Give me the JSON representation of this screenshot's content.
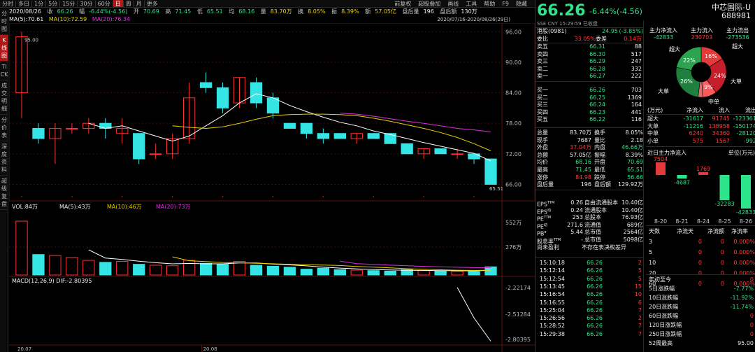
{
  "toolbar": {
    "items": [
      "分时",
      "多日",
      "1分",
      "5分",
      "15分",
      "30分",
      "60分",
      "日",
      "周",
      "月",
      "更多"
    ],
    "active": "日",
    "right": [
      "前复权",
      "超级叠加",
      "画线",
      "工具",
      "帮助",
      "F9",
      "隐藏"
    ]
  },
  "vtabs": [
    {
      "label": "分时图",
      "active": false
    },
    {
      "label": "K线图",
      "active": true
    },
    {
      "label": "TICK",
      "active": false
    },
    {
      "label": "成交明细",
      "active": false
    },
    {
      "label": "分价表",
      "active": false
    },
    {
      "label": "深度资料",
      "active": false
    },
    {
      "label": "超级复盘",
      "active": false
    }
  ],
  "info": {
    "date": "2020/08/26",
    "close_lbl": "收",
    "close": "66.26",
    "chg_lbl": "幅",
    "chg": "-6.44%(-4.56)",
    "open_lbl": "开",
    "open": "70.69",
    "high_lbl": "高",
    "high": "71.45",
    "low_lbl": "低",
    "low": "65.51",
    "avg_lbl": "均",
    "avg": "68.16",
    "vol_lbl": "量",
    "vol": "83.70万",
    "turn_lbl": "换",
    "turn": "8.05%",
    "amp_lbl": "振",
    "amp": "8.39%",
    "amt_lbl": "额",
    "amt": "57.05亿",
    "after_lbl": "盘后量",
    "after": "196",
    "afteramt_lbl": "盘后额",
    "afteramt": "130万"
  },
  "ma": {
    "ma5": "MA(5):70.61",
    "ma10": "MA(10):72.59",
    "ma20": "MA(20):76.34"
  },
  "daterange": "2020/07/16-2020/08/26(29日)",
  "price_axis": {
    "labels": [
      "96.00",
      "90.00",
      "84.00",
      "78.00",
      "72.00",
      "66.00"
    ],
    "high_mark": "95.00",
    "low_mark": "65.51"
  },
  "vol_line": {
    "vol": "VOL:84万",
    "ma5": "MA(5):43万",
    "ma10": "MA(10):46万",
    "ma20": "MA(20):73万"
  },
  "vol_axis": [
    "552万",
    "276万"
  ],
  "macd_line": "MACD(12,26,9)  DIF:-2.80395",
  "macd_axis": [
    "-2.22174",
    "-2.51284",
    "-2.80395"
  ],
  "x_labels": [
    "20.07",
    "20.08"
  ],
  "candles": [
    {
      "o": 84,
      "h": 96,
      "l": 79,
      "c": 95
    },
    {
      "o": 77,
      "h": 78,
      "l": 74,
      "c": 75
    },
    {
      "o": 75,
      "h": 78,
      "l": 70,
      "c": 77
    },
    {
      "o": 77,
      "h": 78,
      "l": 76,
      "c": 77
    },
    {
      "o": 77,
      "h": 79,
      "l": 76,
      "c": 78
    },
    {
      "o": 78,
      "h": 79,
      "l": 75,
      "c": 77
    },
    {
      "o": 76,
      "h": 79,
      "l": 74,
      "c": 77
    },
    {
      "o": 76,
      "h": 76,
      "l": 70,
      "c": 71
    },
    {
      "o": 72,
      "h": 74,
      "l": 71,
      "c": 72
    },
    {
      "o": 72,
      "h": 76,
      "l": 71,
      "c": 75
    },
    {
      "o": 75,
      "h": 86,
      "l": 74,
      "c": 83
    },
    {
      "o": 86,
      "h": 88,
      "l": 84,
      "c": 85
    },
    {
      "o": 85,
      "h": 86,
      "l": 80,
      "c": 81
    },
    {
      "o": 82,
      "h": 87,
      "l": 81,
      "c": 87
    },
    {
      "o": 86,
      "h": 87,
      "l": 81,
      "c": 82
    },
    {
      "o": 83,
      "h": 84,
      "l": 79,
      "c": 80
    },
    {
      "o": 78,
      "h": 78,
      "l": 77,
      "c": 77
    },
    {
      "o": 78,
      "h": 78,
      "l": 75,
      "c": 76
    },
    {
      "o": 76,
      "h": 77,
      "l": 74,
      "c": 75
    },
    {
      "o": 76,
      "h": 76,
      "l": 75,
      "c": 75
    },
    {
      "o": 75,
      "h": 76,
      "l": 74,
      "c": 76
    },
    {
      "o": 76,
      "h": 76,
      "l": 75,
      "c": 75
    },
    {
      "o": 76,
      "h": 76,
      "l": 74,
      "c": 74
    },
    {
      "o": 74,
      "h": 74,
      "l": 72,
      "c": 72
    },
    {
      "o": 72,
      "h": 73,
      "l": 71,
      "c": 73
    },
    {
      "o": 73,
      "h": 73,
      "l": 72,
      "c": 72
    },
    {
      "o": 72,
      "h": 73,
      "l": 71,
      "c": 72
    },
    {
      "o": 72,
      "h": 72,
      "l": 70,
      "c": 71
    },
    {
      "o": 71,
      "h": 71,
      "l": 66,
      "c": 66
    }
  ],
  "ma5_vals": [
    null,
    null,
    null,
    null,
    78.0,
    77.0,
    77.5,
    76.5,
    75.5,
    74.5,
    75.5,
    77.5,
    79.5,
    82.0,
    83.8,
    83.0,
    81.5,
    80.3,
    79.2,
    78.2,
    77.5,
    76.5,
    75.8,
    75.0,
    74.2,
    73.5,
    72.8,
    72.1,
    70.6
  ],
  "ma10_vals": [
    null,
    null,
    null,
    null,
    null,
    null,
    null,
    null,
    null,
    77.5,
    77.2,
    77.0,
    77.3,
    78.0,
    78.8,
    79.5,
    79.7,
    79.8,
    79.8,
    79.7,
    79.5,
    79.0,
    78.4,
    77.7,
    77.0,
    76.2,
    75.2,
    74.0,
    72.6
  ],
  "ma20_vals": [
    null,
    null,
    null,
    null,
    null,
    null,
    null,
    null,
    null,
    null,
    null,
    null,
    null,
    null,
    null,
    null,
    null,
    null,
    null,
    80.0,
    79.8,
    79.4,
    78.9,
    78.4,
    78.0,
    77.5,
    77.0,
    76.7,
    76.3
  ],
  "vols": [
    552,
    210,
    200,
    180,
    150,
    130,
    140,
    110,
    100,
    95,
    150,
    120,
    110,
    140,
    100,
    90,
    80,
    60,
    70,
    55,
    50,
    45,
    40,
    55,
    45,
    40,
    38,
    35,
    84
  ],
  "macd_vals": [
    null,
    null,
    null,
    null,
    null,
    null,
    null,
    null,
    null,
    null,
    null,
    null,
    null,
    null,
    null,
    null,
    null,
    null,
    null,
    null,
    null,
    null,
    null,
    null,
    null,
    null,
    -2.22,
    -2.55,
    -2.8
  ],
  "quote": {
    "price": "66.26",
    "chg": "-6.44%(-4.56)",
    "name": "中芯国际-U",
    "code": "688981",
    "sub": "SSE  CNY  15:29:59  已收盘",
    "hk_lbl": "港股(0981)",
    "hk_price": "24.95",
    "hk_chg": "(-3.85%)",
    "wb_lbl": "委比",
    "wb": "33.05%",
    "wc_lbl": "委差",
    "wc": "0.14万"
  },
  "asks": [
    {
      "l": "卖五",
      "p": "66.31",
      "v": "88"
    },
    {
      "l": "卖四",
      "p": "66.30",
      "v": "517"
    },
    {
      "l": "卖三",
      "p": "66.29",
      "v": "247"
    },
    {
      "l": "卖二",
      "p": "66.28",
      "v": "332"
    },
    {
      "l": "卖一",
      "p": "66.27",
      "v": "222"
    }
  ],
  "bids": [
    {
      "l": "买一",
      "p": "66.26",
      "v": "703"
    },
    {
      "l": "买二",
      "p": "66.25",
      "v": "1369"
    },
    {
      "l": "买三",
      "p": "66.24",
      "v": "164"
    },
    {
      "l": "买四",
      "p": "66.23",
      "v": "441"
    },
    {
      "l": "买五",
      "p": "66.22",
      "v": "116"
    }
  ],
  "stats": [
    {
      "a": "总量",
      "b": "83.70万",
      "c": "换手",
      "d": "8.05%",
      "bc": "white",
      "dc": "white"
    },
    {
      "a": "现手",
      "b": "7687",
      "c": "量比",
      "d": "2.18",
      "bc": "white",
      "dc": "white"
    },
    {
      "a": "外盘",
      "b": "37.04万",
      "c": "内盘",
      "d": "46.66万",
      "bc": "red",
      "dc": "green"
    },
    {
      "a": "总额",
      "b": "57.05亿",
      "c": "振幅",
      "d": "8.39%",
      "bc": "white",
      "dc": "white"
    },
    {
      "a": "均价",
      "b": "68.16",
      "c": "开盘",
      "d": "70.69",
      "bc": "green",
      "dc": "green"
    },
    {
      "a": "最高",
      "b": "71.45",
      "c": "最低",
      "d": "65.51",
      "bc": "green",
      "dc": "green"
    },
    {
      "a": "涨停",
      "b": "84.98",
      "c": "跌停",
      "d": "56.66",
      "bc": "red",
      "dc": "green"
    },
    {
      "a": "盘后量",
      "b": "196",
      "c": "盘后额",
      "d": "129.92万",
      "bc": "white",
      "dc": "white"
    }
  ],
  "fin": [
    {
      "a": "EPS",
      "sa": "TTM",
      "b": "0.26",
      "c": "自由流通股本",
      "d": "10.40亿"
    },
    {
      "a": "EPS",
      "sa": "动",
      "b": "0.24",
      "c": "流通股本",
      "d": "10.40亿"
    },
    {
      "a": "PE",
      "sa": "TTM",
      "b": "253",
      "c": "总股本",
      "d": "76.93亿"
    },
    {
      "a": "PE",
      "sa": "动",
      "b": "271.6",
      "c": "流通值",
      "d": "689亿"
    },
    {
      "a": "PB",
      "sa": "σ",
      "b": "5.44",
      "c": "总市值",
      "d": "2564亿"
    },
    {
      "a": "股息率",
      "sa": "TTM",
      "b": "-",
      "c": "总市值",
      "d": "5098亿"
    },
    {
      "a": "尚未盈利",
      "sa": "",
      "b": "",
      "c": "不存在表决权差异",
      "d": ""
    }
  ],
  "ticks": [
    {
      "t": "15:10:18",
      "p": "66.26",
      "v": "2"
    },
    {
      "t": "15:12:14",
      "p": "66.26",
      "v": "5"
    },
    {
      "t": "15:12:54",
      "p": "66.26",
      "v": "5"
    },
    {
      "t": "15:13:45",
      "p": "66.26",
      "v": "15"
    },
    {
      "t": "15:16:54",
      "p": "66.26",
      "v": "10"
    },
    {
      "t": "15:16:55",
      "p": "66.26",
      "v": "6"
    },
    {
      "t": "15:25:04",
      "p": "66.26",
      "v": "7"
    },
    {
      "t": "15:26:56",
      "p": "66.26",
      "v": "2"
    },
    {
      "t": "15:28:52",
      "p": "66.26",
      "v": "7"
    },
    {
      "t": "15:29:38",
      "p": "66.26",
      "v": "7"
    }
  ],
  "flow": {
    "h1": "主力净流入",
    "h2": "主力流入",
    "h3": "主力流出",
    "v1": "-42833",
    "v2": "230703",
    "v3": "-273536"
  },
  "pie": {
    "slices": [
      {
        "label": "超大",
        "pct": 16,
        "color": "#e33b3b"
      },
      {
        "label": "",
        "pct": 24,
        "color": "#c41e2a"
      },
      {
        "label": "",
        "pct": 9,
        "color": "#ff5a5a"
      },
      {
        "label": "",
        "pct": 3,
        "color": "#e07070"
      },
      {
        "label": "",
        "pct": 26,
        "color": "#1f7f3c"
      },
      {
        "label": "",
        "pct": 22,
        "color": "#2ca34f"
      }
    ],
    "labels": {
      "chaoda_l": "超大",
      "chaoda_r": "超大",
      "dadan_l": "大单",
      "dadan_r": "大单",
      "zhongdan": "中单",
      "p16": "16%",
      "p24": "24%",
      "p9": "9%",
      "p26": "26%",
      "p22": "22%"
    }
  },
  "flow_table": {
    "unit": "(万元)",
    "h": [
      "净流入",
      "流入",
      "流出"
    ],
    "rows": [
      {
        "n": "超大",
        "a": "-31617",
        "b": "91745",
        "c": "-123361"
      },
      {
        "n": "大单",
        "a": "-11216",
        "b": "138958",
        "c": "-150174"
      },
      {
        "n": "中单",
        "a": "6240",
        "b": "34360",
        "c": "-28120"
      },
      {
        "n": "小单",
        "a": "575",
        "b": "1567",
        "c": "-992"
      }
    ]
  },
  "flow5": {
    "title": "近日主力净流入",
    "unit": "单位(万元)",
    "bars": [
      {
        "d": "8-20",
        "v": 7504
      },
      {
        "d": "8-21",
        "v": -4687
      },
      {
        "d": "8-24",
        "v": 1769
      },
      {
        "d": "8-25",
        "v": -32283
      },
      {
        "d": "8-26",
        "v": -42833
      }
    ]
  },
  "days_table": {
    "h": [
      "天数",
      "净流天",
      "净流额",
      "净流率"
    ],
    "rows": [
      {
        "a": "3",
        "b": "0",
        "c": "0",
        "d": "0.000%"
      },
      {
        "a": "5",
        "b": "0",
        "c": "0",
        "d": "0.000%"
      },
      {
        "a": "10",
        "b": "0",
        "c": "0",
        "d": "0.000%"
      },
      {
        "a": "20",
        "b": "0",
        "c": "0",
        "d": "0.000%"
      },
      {
        "a": "60",
        "b": "0",
        "c": "0",
        "d": "0.000%"
      }
    ]
  },
  "changes": [
    {
      "l": "年初至今",
      "v": "0"
    },
    {
      "l": "5日涨跌幅",
      "v": "-7.77%"
    },
    {
      "l": "10日涨跌幅",
      "v": "-11.92%"
    },
    {
      "l": "20日涨跌幅",
      "v": "-11.74%"
    },
    {
      "l": "60日涨跌幅",
      "v": "0"
    },
    {
      "l": "120日涨跌幅",
      "v": "0"
    },
    {
      "l": "250日涨跌幅",
      "v": "0"
    },
    {
      "l": "52周最高",
      "v": "95.00"
    }
  ]
}
